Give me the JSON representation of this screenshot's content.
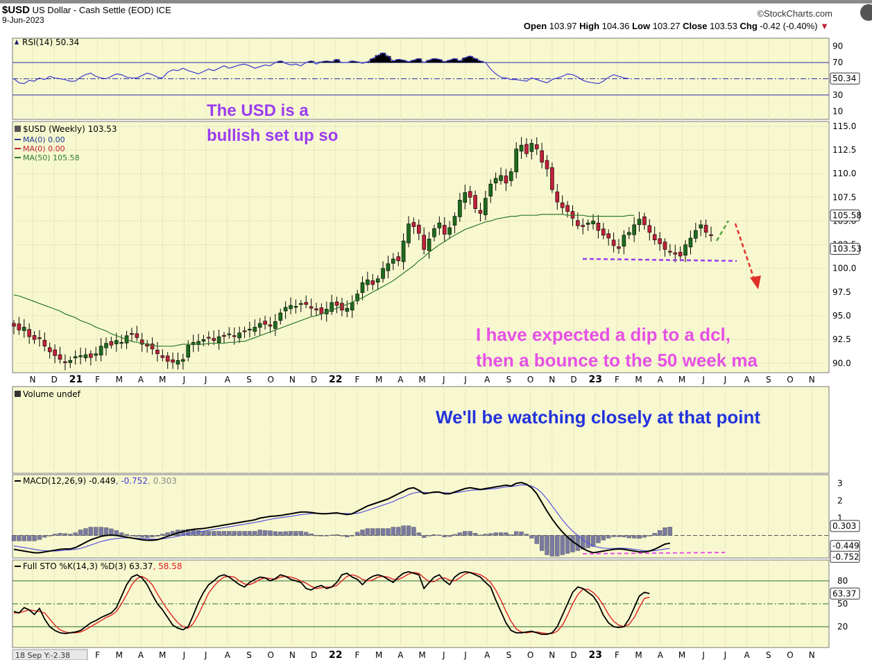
{
  "header": {
    "symbol": "$USD",
    "name": "US Dollar - Cash Settle (EOD) ICE",
    "date": "9-Jun-2023",
    "source": "©StockCharts.com",
    "open_label": "Open",
    "open": "103.97",
    "high_label": "High",
    "high": "104.36",
    "low_label": "Low",
    "low": "103.27",
    "close_label": "Close",
    "close": "103.53",
    "chg_label": "Chg",
    "chg": "-0.42 (-0.40%)",
    "chg_arrow": "▼"
  },
  "colors": {
    "panel_bg": "#f8f8d0",
    "grid": "#d9d9a8",
    "up": "#1e6b1e",
    "down": "#c0203a",
    "ma50": "#2d7a2d",
    "rsi": "#3a3ad0",
    "macd": "#000000",
    "signal": "#5555dd",
    "hist": "#7a7aa0",
    "stoK": "#000000",
    "stoD": "#dd2020",
    "annot_purple": "#9b3cf0",
    "annot_magenta": "#e650e6",
    "annot_blue": "#2233dd"
  },
  "chart_data": [
    {
      "type": "line",
      "name": "rsi",
      "title": "RSI(14) 50.34",
      "ylim": [
        0,
        100
      ],
      "y_ticks": [
        "90",
        "70",
        "30",
        "10"
      ],
      "levels": [
        70,
        30
      ],
      "last_value_label": "50.34",
      "values": [
        50,
        45,
        44,
        48,
        47,
        51,
        49,
        53,
        51,
        50,
        49,
        47,
        47,
        52,
        55,
        57,
        53,
        51,
        50,
        53,
        56,
        55,
        52,
        51,
        51,
        54,
        57,
        55,
        52,
        51,
        58,
        61,
        60,
        63,
        60,
        58,
        56,
        59,
        62,
        60,
        63,
        66,
        63,
        65,
        67,
        68,
        66,
        63,
        65,
        67,
        66,
        70,
        72,
        69,
        67,
        68,
        66,
        70,
        72,
        68,
        71,
        72,
        71,
        74,
        70,
        70,
        72,
        71,
        69,
        71,
        75,
        79,
        82,
        78,
        72,
        74,
        73,
        71,
        73,
        75,
        70,
        73,
        75,
        74,
        71,
        73,
        75,
        72,
        76,
        78,
        75,
        72,
        70,
        62,
        56,
        52,
        51,
        49,
        49,
        48,
        47,
        51,
        49,
        47,
        45,
        49,
        51,
        53,
        56,
        55,
        52,
        48,
        46,
        45,
        44,
        47,
        52,
        55,
        53,
        51,
        50
      ]
    },
    {
      "type": "candlestick",
      "name": "price",
      "title": "$USD (Weekly) 103.53",
      "legend": [
        {
          "name": "MA(0) 0.00",
          "color": "#1f3a93"
        },
        {
          "name": "MA(0) 0.00",
          "color": "#c0203a"
        },
        {
          "name": "MA(50) 105.58",
          "color": "#2d7a2d"
        }
      ],
      "ylim": [
        89,
        115.5
      ],
      "y_ticks": [
        "115.0",
        "112.5",
        "110.0",
        "107.5",
        "105.0",
        "102.5",
        "100.0",
        "97.5",
        "95.0",
        "92.5",
        "90.0"
      ],
      "close": [
        93.9,
        93.5,
        93.8,
        92.8,
        92.5,
        92.6,
        91.8,
        91.2,
        90.8,
        90.4,
        90.1,
        90.3,
        90.7,
        90.8,
        90.9,
        90.6,
        91.0,
        91.8,
        92.1,
        91.9,
        92.4,
        92.2,
        92.9,
        93.1,
        92.7,
        92.0,
        91.8,
        91.5,
        91.0,
        90.6,
        90.2,
        90.1,
        90.3,
        90.4,
        91.9,
        92.2,
        92.3,
        92.5,
        92.7,
        92.4,
        92.8,
        92.9,
        93.1,
        92.8,
        93.2,
        93.4,
        93.6,
        93.8,
        94.2,
        94.1,
        93.9,
        94.4,
        95.3,
        95.9,
        96.1,
        96.0,
        96.3,
        96.2,
        95.8,
        95.6,
        95.2,
        95.7,
        96.4,
        96.1,
        95.6,
        95.8,
        96.4,
        97.3,
        98.5,
        98.8,
        98.3,
        98.9,
        100.0,
        100.5,
        101.0,
        100.8,
        102.9,
        104.7,
        104.4,
        103.7,
        102.0,
        103.1,
        104.2,
        104.8,
        103.6,
        104.3,
        105.5,
        107.2,
        108.0,
        107.5,
        106.3,
        105.8,
        107.4,
        108.9,
        109.5,
        109.8,
        109.0,
        110.2,
        112.6,
        113.0,
        112.1,
        113.2,
        112.6,
        111.2,
        110.5,
        108.3,
        107.0,
        106.4,
        106.0,
        105.3,
        104.5,
        104.4,
        104.8,
        105.0,
        104.0,
        103.5,
        103.2,
        102.4,
        102.1,
        103.5,
        103.8,
        104.6,
        105.2,
        104.6,
        103.8,
        103.0,
        102.6,
        102.0,
        101.8,
        101.5,
        101.3,
        102.5,
        103.2,
        104.0,
        104.6,
        103.8,
        103.53
      ],
      "ma50": [
        97.2,
        97.1,
        96.9,
        96.7,
        96.5,
        96.3,
        96.1,
        95.9,
        95.7,
        95.5,
        95.2,
        95.0,
        94.8,
        94.5,
        94.3,
        94.1,
        93.8,
        93.6,
        93.4,
        93.1,
        92.9,
        92.7,
        92.5,
        92.3,
        92.2,
        92.1,
        92.0,
        91.9,
        91.8,
        91.8,
        91.8,
        91.8,
        91.9,
        92.0,
        92.0,
        92.0,
        92.0,
        92.0,
        92.1,
        92.1,
        92.1,
        92.1,
        92.2,
        92.2,
        92.3,
        92.3,
        92.5,
        92.7,
        92.9,
        93.1,
        93.3,
        93.5,
        93.7,
        93.9,
        94.1,
        94.3,
        94.5,
        94.7,
        94.9,
        95.0,
        95.2,
        95.4,
        95.6,
        95.8,
        96.0,
        96.2,
        96.4,
        96.7,
        96.9,
        97.2,
        97.5,
        97.8,
        98.1,
        98.4,
        98.7,
        99.1,
        99.5,
        99.9,
        100.3,
        100.8,
        101.2,
        101.7,
        102.1,
        102.5,
        102.8,
        103.2,
        103.5,
        103.8,
        104.1,
        104.3,
        104.5,
        104.7,
        104.9,
        105.0,
        105.2,
        105.3,
        105.4,
        105.5,
        105.5,
        105.6,
        105.6,
        105.6,
        105.6,
        105.7,
        105.7,
        105.7,
        105.7,
        105.7,
        105.6,
        105.6,
        105.6,
        105.6,
        105.5,
        105.5,
        105.5,
        105.5,
        105.5,
        105.5,
        105.5,
        105.5,
        105.6,
        105.58
      ],
      "last_value_label": "103.53",
      "ma50_label": "105.58"
    },
    {
      "type": "bar",
      "name": "volume",
      "title": "Volume undef"
    },
    {
      "type": "line",
      "name": "macd",
      "title": "MACD(12,26,9) -0.449, -0.752, 0.303",
      "title_parts": [
        "MACD(12,26,9) -0.449",
        ", -0.752",
        ", 0.303"
      ],
      "ylim": [
        -1.3,
        3.5
      ],
      "y_ticks": [
        "3",
        "2",
        "1"
      ],
      "labels": [
        "0.303",
        "-0.449",
        "-0.752"
      ],
      "macd": [
        -0.8,
        -0.85,
        -0.9,
        -0.95,
        -1.0,
        -1.0,
        -0.95,
        -0.9,
        -0.85,
        -0.8,
        -0.78,
        -0.78,
        -0.7,
        -0.55,
        -0.4,
        -0.25,
        -0.15,
        -0.05,
        0.0,
        0.02,
        0.0,
        -0.05,
        -0.1,
        -0.15,
        -0.2,
        -0.25,
        -0.28,
        -0.28,
        -0.25,
        -0.15,
        -0.05,
        0.05,
        0.15,
        0.22,
        0.3,
        0.35,
        0.38,
        0.4,
        0.45,
        0.5,
        0.55,
        0.6,
        0.65,
        0.7,
        0.75,
        0.8,
        0.85,
        0.9,
        1.0,
        1.05,
        1.1,
        1.12,
        1.15,
        1.2,
        1.25,
        1.3,
        1.35,
        1.35,
        1.32,
        1.28,
        1.25,
        1.25,
        1.28,
        1.3,
        1.25,
        1.2,
        1.25,
        1.4,
        1.55,
        1.7,
        1.8,
        1.9,
        2.0,
        2.1,
        2.25,
        2.4,
        2.55,
        2.7,
        2.75,
        2.6,
        2.4,
        2.45,
        2.5,
        2.5,
        2.4,
        2.4,
        2.5,
        2.6,
        2.7,
        2.75,
        2.7,
        2.65,
        2.7,
        2.75,
        2.8,
        2.85,
        2.9,
        2.85,
        3.0,
        3.05,
        2.95,
        2.75,
        2.4,
        1.9,
        1.4,
        0.95,
        0.55,
        0.2,
        -0.1,
        -0.35,
        -0.55,
        -0.75,
        -0.9,
        -1.0,
        -0.95,
        -0.9,
        -0.85,
        -0.8,
        -0.78,
        -0.8,
        -0.85,
        -0.9,
        -0.95,
        -0.95,
        -0.9,
        -0.8,
        -0.65,
        -0.5,
        -0.449
      ],
      "signal": [
        -0.6,
        -0.65,
        -0.7,
        -0.75,
        -0.8,
        -0.85,
        -0.88,
        -0.9,
        -0.9,
        -0.88,
        -0.85,
        -0.83,
        -0.8,
        -0.75,
        -0.65,
        -0.55,
        -0.45,
        -0.35,
        -0.28,
        -0.22,
        -0.18,
        -0.15,
        -0.14,
        -0.14,
        -0.16,
        -0.18,
        -0.2,
        -0.22,
        -0.22,
        -0.2,
        -0.15,
        -0.1,
        -0.05,
        0.02,
        0.08,
        0.15,
        0.2,
        0.25,
        0.3,
        0.35,
        0.4,
        0.45,
        0.5,
        0.55,
        0.6,
        0.65,
        0.7,
        0.75,
        0.8,
        0.87,
        0.93,
        0.98,
        1.02,
        1.06,
        1.1,
        1.15,
        1.2,
        1.23,
        1.26,
        1.27,
        1.27,
        1.26,
        1.26,
        1.27,
        1.27,
        1.26,
        1.25,
        1.28,
        1.35,
        1.45,
        1.55,
        1.65,
        1.75,
        1.85,
        1.95,
        2.1,
        2.2,
        2.35,
        2.45,
        2.5,
        2.48,
        2.46,
        2.47,
        2.48,
        2.46,
        2.44,
        2.46,
        2.5,
        2.55,
        2.6,
        2.62,
        2.63,
        2.65,
        2.68,
        2.7,
        2.75,
        2.8,
        2.82,
        2.86,
        2.92,
        2.9,
        2.85,
        2.7,
        2.45,
        2.1,
        1.7,
        1.3,
        0.9,
        0.55,
        0.25,
        0.0,
        -0.25,
        -0.45,
        -0.6,
        -0.68,
        -0.73,
        -0.75,
        -0.75,
        -0.73,
        -0.74,
        -0.76,
        -0.8,
        -0.84,
        -0.88,
        -0.9,
        -0.88,
        -0.83,
        -0.78,
        -0.752
      ]
    },
    {
      "type": "line",
      "name": "stochastic",
      "title": "Full STO %K(14,3) %D(3) 63.37, 58.58",
      "title_parts": [
        "Full STO %K(14,3) %D(3) 63.37",
        ", 58.58"
      ],
      "ylim": [
        0,
        100
      ],
      "y_ticks": [
        "80",
        "50",
        "20"
      ],
      "levels": [
        80,
        20
      ],
      "last_value_label": "63.37",
      "k": [
        40,
        38,
        45,
        42,
        36,
        44,
        30,
        20,
        15,
        12,
        11,
        12,
        13,
        15,
        20,
        25,
        28,
        32,
        35,
        38,
        45,
        60,
        75,
        85,
        88,
        84,
        75,
        62,
        50,
        42,
        32,
        22,
        18,
        16,
        20,
        35,
        52,
        65,
        75,
        80,
        86,
        88,
        85,
        80,
        75,
        72,
        78,
        82,
        85,
        84,
        80,
        83,
        88,
        86,
        82,
        80,
        78,
        70,
        68,
        72,
        74,
        70,
        72,
        78,
        88,
        90,
        85,
        82,
        75,
        82,
        86,
        88,
        86,
        82,
        78,
        85,
        90,
        92,
        90,
        88,
        70,
        78,
        85,
        88,
        80,
        75,
        85,
        90,
        92,
        91,
        88,
        85,
        78,
        72,
        55,
        40,
        25,
        15,
        12,
        12,
        13,
        14,
        12,
        10,
        10,
        12,
        20,
        35,
        50,
        65,
        72,
        70,
        65,
        60,
        50,
        35,
        25,
        20,
        19,
        20,
        30,
        45,
        60,
        65,
        63.37
      ],
      "d": [
        38,
        38,
        40,
        42,
        41,
        40,
        38,
        30,
        22,
        16,
        13,
        12,
        12,
        13,
        16,
        20,
        24,
        28,
        32,
        35,
        40,
        50,
        62,
        75,
        83,
        86,
        82,
        75,
        63,
        52,
        42,
        33,
        25,
        20,
        18,
        24,
        36,
        50,
        64,
        73,
        80,
        85,
        86,
        85,
        80,
        76,
        75,
        78,
        82,
        84,
        83,
        82,
        85,
        86,
        85,
        83,
        80,
        77,
        73,
        70,
        71,
        72,
        72,
        74,
        80,
        86,
        88,
        86,
        82,
        80,
        81,
        85,
        86,
        85,
        82,
        82,
        85,
        89,
        91,
        90,
        84,
        79,
        79,
        83,
        84,
        81,
        80,
        84,
        89,
        91,
        90,
        88,
        84,
        78,
        68,
        55,
        40,
        27,
        17,
        13,
        12,
        13,
        13,
        12,
        11,
        11,
        14,
        22,
        35,
        50,
        62,
        69,
        69,
        65,
        58,
        48,
        36,
        27,
        22,
        20,
        23,
        32,
        45,
        57,
        58.58
      ]
    },
    {
      "type": "axis",
      "name": "months",
      "ticks": [
        "N",
        "D",
        "21",
        "F",
        "M",
        "A",
        "M",
        "J",
        "J",
        "A",
        "S",
        "O",
        "N",
        "D",
        "22",
        "F",
        "M",
        "A",
        "M",
        "J",
        "J",
        "A",
        "S",
        "O",
        "N",
        "D",
        "23",
        "F",
        "M",
        "A",
        "M",
        "J",
        "J",
        "A",
        "S",
        "O",
        "N"
      ],
      "bottom_ticks": [
        "18 Sep Y:-2.38",
        "F",
        "M",
        "A",
        "M",
        "J",
        "J",
        "A",
        "S",
        "O",
        "N",
        "D",
        "22",
        "F",
        "M",
        "A",
        "M",
        "J",
        "J",
        "A",
        "S",
        "O",
        "N",
        "D",
        "23",
        "F",
        "M",
        "A",
        "M",
        "J",
        "J",
        "A",
        "S",
        "O",
        "N"
      ]
    }
  ],
  "annotations": {
    "a1_line1": "The USD is a",
    "a1_line2": "bullish set up so",
    "a2_line1": "I have expected a dip to a dcl,",
    "a2_line2": "then a bounce to the 50 week ma",
    "a3": "We'll be watching closely at that point"
  }
}
